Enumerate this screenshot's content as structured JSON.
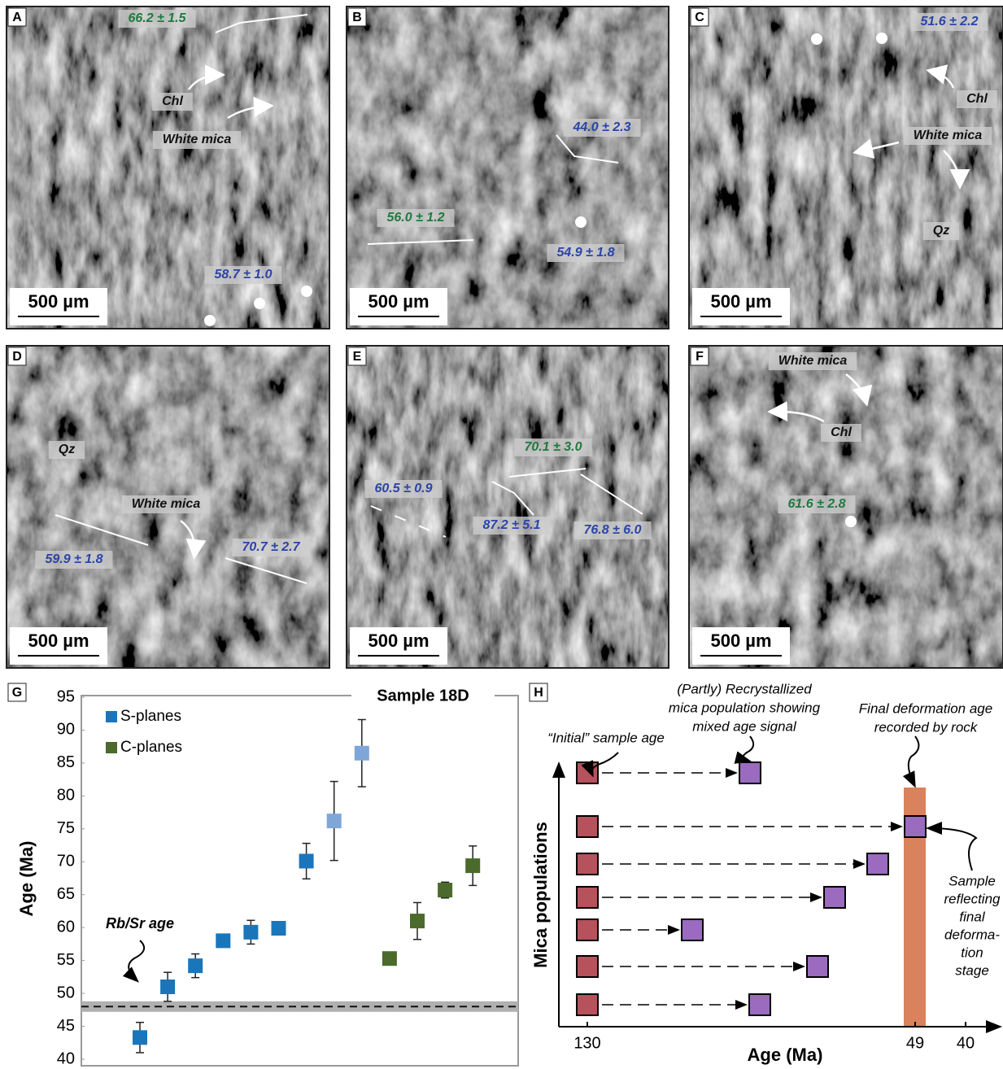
{
  "panels": [
    {
      "letter": "A",
      "scale_bar": "500 µm",
      "labels": [
        "66.2 ± 1.5",
        "Chl",
        "White mica",
        "58.7 ± 1.0"
      ]
    },
    {
      "letter": "B",
      "scale_bar": "500 µm",
      "labels": [
        "44.0 ± 2.3",
        "56.0 ± 1.2",
        "54.9 ± 1.8"
      ]
    },
    {
      "letter": "C",
      "scale_bar": "500 µm",
      "labels": [
        "51.6 ± 2.2",
        "Chl",
        "White mica",
        "Qz"
      ]
    },
    {
      "letter": "D",
      "scale_bar": "500 µm",
      "labels": [
        "Qz",
        "White mica",
        "70.7 ± 2.7",
        "59.9 ± 1.8"
      ]
    },
    {
      "letter": "E",
      "scale_bar": "500 µm",
      "labels": [
        "70.1 ± 3.0",
        "60.5 ± 0.9",
        "87.2 ± 5.1",
        "76.8 ± 6.0"
      ]
    },
    {
      "letter": "F",
      "scale_bar": "500 µm",
      "labels": [
        "White mica",
        "Chl",
        "61.6 ± 2.8"
      ]
    }
  ],
  "chart_data": {
    "type": "scatter",
    "panel_letter": "G",
    "title": "Sample 18D",
    "y_label": "Age (Ma)",
    "categories": [
      null,
      null,
      null,
      null,
      null,
      null,
      null,
      null,
      null,
      null,
      null,
      null,
      null
    ],
    "series": [
      {
        "name": "S-planes",
        "color": "#1b75bb",
        "values": [
          43.3,
          51.0,
          54.2,
          58.0,
          59.3,
          59.9,
          70.1,
          76.2,
          86.5,
          null,
          null,
          null,
          null
        ],
        "errors": [
          2.3,
          2.2,
          1.8,
          0.6,
          1.8,
          0.4,
          2.7,
          6.0,
          5.1,
          null,
          null,
          null,
          null
        ],
        "colors": [
          "#1b75bb",
          "#1b75bb",
          "#1b75bb",
          "#1b75bb",
          "#1b75bb",
          "#1b75bb",
          "#1b75bb",
          "#7fa6d8",
          "#7fa6d8",
          null,
          null,
          null,
          null
        ]
      },
      {
        "name": "C-planes",
        "color": "#4b6a2b",
        "values": [
          null,
          null,
          null,
          null,
          null,
          null,
          null,
          null,
          null,
          55.3,
          61.0,
          65.7,
          69.4
        ],
        "errors": [
          null,
          null,
          null,
          null,
          null,
          null,
          null,
          null,
          null,
          0.7,
          2.8,
          1.2,
          3.0
        ]
      }
    ],
    "ylim": [
      40,
      95
    ],
    "yticks": [
      40,
      45,
      50,
      55,
      60,
      65,
      70,
      75,
      80,
      85,
      90,
      95
    ],
    "rbsr_age": 48,
    "rbsr_band": [
      47.2,
      48.8
    ],
    "rbsr_label": "Rb/Sr age"
  },
  "diagram_h": {
    "panel_letter": "H",
    "y_axis_label": "Mica populations",
    "x_axis_label": "Age (Ma)",
    "x_ticks": [
      "130",
      "49",
      "40"
    ],
    "initial": "“Initial” sample age",
    "recrystallized": [
      "(Partly) Recrystallized",
      "mica population showing",
      "mixed age signal"
    ],
    "final": [
      "Final deformation age",
      "recorded by rock"
    ],
    "sample": [
      "Sample",
      "reflecting",
      "final",
      "deforma-",
      "tion",
      "stage"
    ]
  }
}
